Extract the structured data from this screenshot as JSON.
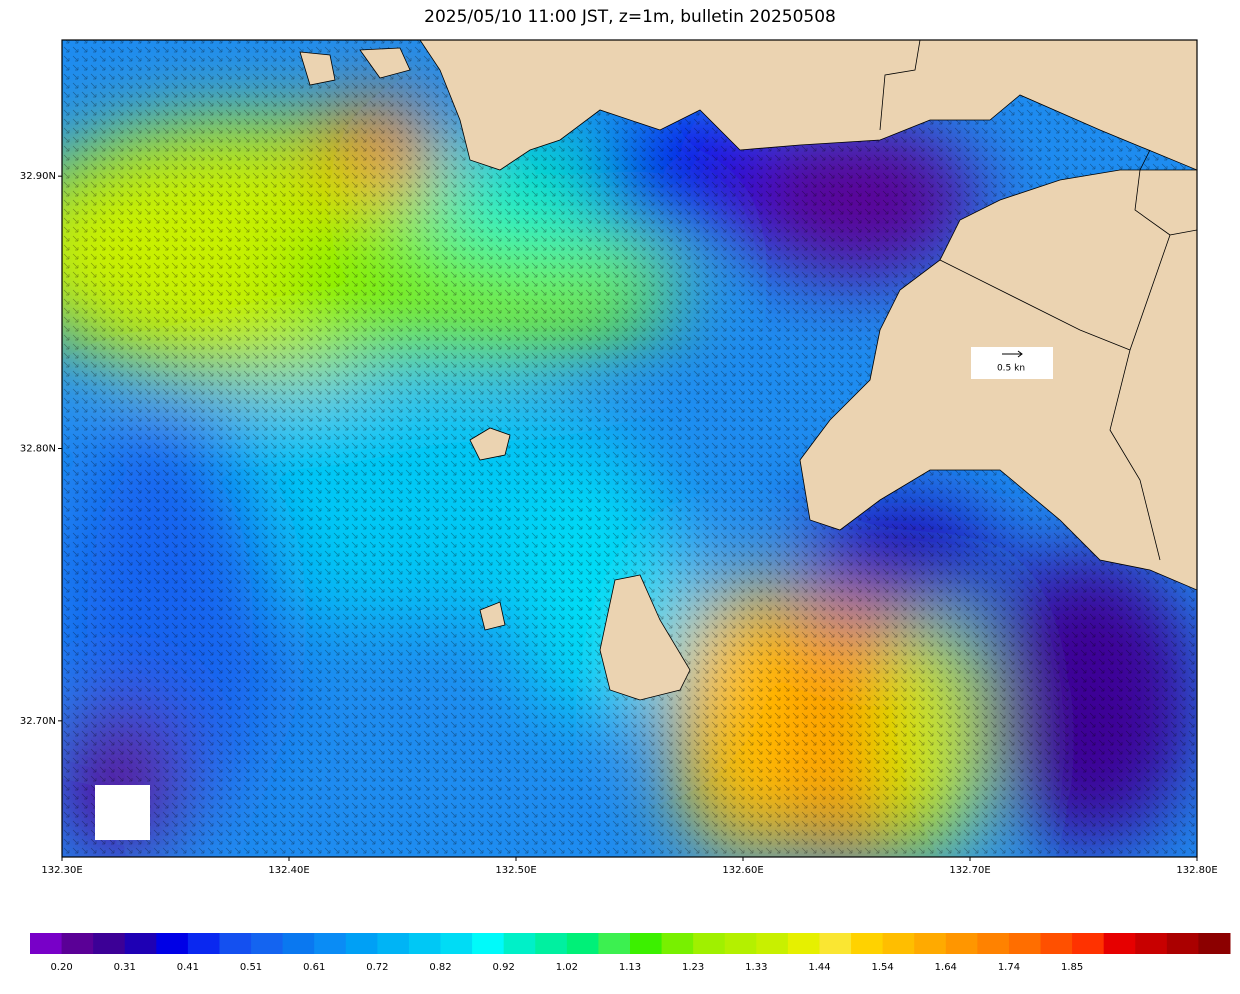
{
  "map": {
    "title": "2025/05/10 11:00 JST, z=1m, bulletin 20250508",
    "xlim": [
      132.3,
      132.8
    ],
    "ylim": [
      32.65,
      32.95
    ],
    "xticks": [
      {
        "value": 132.3,
        "label": "132.30E"
      },
      {
        "value": 132.4,
        "label": "132.40E"
      },
      {
        "value": 132.5,
        "label": "132.50E"
      },
      {
        "value": 132.6,
        "label": "132.60E"
      },
      {
        "value": 132.7,
        "label": "132.70E"
      },
      {
        "value": 132.8,
        "label": "132.80E"
      }
    ],
    "yticks": [
      {
        "value": 32.7,
        "label": "32.70N"
      },
      {
        "value": 32.8,
        "label": "32.80N"
      },
      {
        "value": 32.9,
        "label": "32.90N"
      }
    ],
    "scale_label": "0.5 kn",
    "colorbar": {
      "colors": [
        "#7800c8",
        "#5a0096",
        "#3c0096",
        "#1e00b4",
        "#0000e6",
        "#0a28f0",
        "#1450f0",
        "#1464f0",
        "#0a78f0",
        "#0a8cf5",
        "#00a0f5",
        "#00b4f5",
        "#00c8f5",
        "#00dcf5",
        "#00fafa",
        "#00f0c8",
        "#00f0a0",
        "#00f078",
        "#3cf050",
        "#3cf000",
        "#78f000",
        "#a0f000",
        "#b4f000",
        "#c8f000",
        "#e6f000",
        "#fae632",
        "#ffd200",
        "#ffbe00",
        "#ffaa00",
        "#ff9600",
        "#ff8200",
        "#ff6e00",
        "#ff5000",
        "#ff3200",
        "#e60000",
        "#c80000",
        "#aa0000",
        "#8c0000"
      ],
      "labels": [
        "0.20",
        "0.31",
        "0.41",
        "0.51",
        "0.61",
        "0.72",
        "0.82",
        "0.92",
        "1.02",
        "1.13",
        "1.23",
        "1.33",
        "1.44",
        "1.54",
        "1.64",
        "1.74",
        "1.85"
      ]
    }
  }
}
